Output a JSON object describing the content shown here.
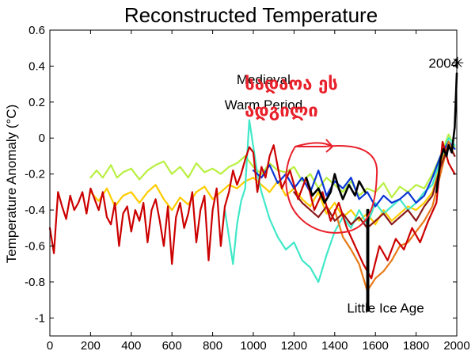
{
  "chart_data": {
    "type": "line",
    "title": "Reconstructed Temperature",
    "xlabel": "",
    "ylabel": "Temperature Anomaly (°C)",
    "xlim": [
      0,
      2000
    ],
    "ylim": [
      -1.1,
      0.6
    ],
    "xticks": [
      0,
      200,
      400,
      600,
      800,
      1000,
      1200,
      1400,
      1600,
      1800,
      2000
    ],
    "yticks": [
      0.6,
      0.4,
      0.2,
      0,
      -0.2,
      -0.4,
      -0.6,
      -0.8,
      -1
    ],
    "ytick_labels": [
      "0.6",
      "0.4",
      "0.2",
      "0",
      "-0.2",
      "-0.4",
      "-0.6",
      "-0.8",
      "-1"
    ],
    "grid": false,
    "annotations": [
      {
        "text": "Medieval",
        "x": 1050,
        "y": 0.3
      },
      {
        "text": "Warm Period",
        "x": 1050,
        "y": 0.16
      },
      {
        "text": "Little Ice Age",
        "x": 1650,
        "y": -0.97
      },
      {
        "text": "2004",
        "x": 1935,
        "y": 0.39
      },
      {
        "text": "სადაოა ეს",
        "x": 1580,
        "y": 0.27
      },
      {
        "text": "ადგილი",
        "x": 1580,
        "y": 0.12
      }
    ],
    "series": [
      {
        "color": "#b8f040",
        "x": [
          200,
          230,
          260,
          300,
          330,
          360,
          400,
          440,
          480,
          520,
          560,
          600,
          640,
          680,
          720,
          760,
          800,
          840,
          880,
          920,
          960,
          1000,
          1040,
          1080,
          1120,
          1160,
          1200,
          1240,
          1280,
          1320,
          1360,
          1400,
          1440,
          1480,
          1520,
          1560,
          1600,
          1640,
          1680,
          1720,
          1760,
          1800,
          1840,
          1880,
          1920,
          1960,
          1990
        ],
        "y": [
          -0.22,
          -0.18,
          -0.22,
          -0.15,
          -0.22,
          -0.19,
          -0.17,
          -0.23,
          -0.18,
          -0.15,
          -0.13,
          -0.2,
          -0.16,
          -0.22,
          -0.14,
          -0.19,
          -0.17,
          -0.2,
          -0.16,
          -0.14,
          -0.1,
          -0.16,
          -0.2,
          -0.14,
          -0.18,
          -0.19,
          -0.16,
          -0.24,
          -0.2,
          -0.28,
          -0.22,
          -0.26,
          -0.3,
          -0.24,
          -0.32,
          -0.28,
          -0.3,
          -0.25,
          -0.33,
          -0.27,
          -0.3,
          -0.26,
          -0.28,
          -0.2,
          -0.1,
          0.02,
          -0.05
        ]
      },
      {
        "color": "#ffcc00",
        "x": [
          200,
          240,
          280,
          320,
          360,
          400,
          440,
          480,
          520,
          560,
          600,
          640,
          680,
          720,
          760,
          800,
          840,
          880,
          920,
          960,
          1000,
          1040,
          1080,
          1120,
          1160,
          1200,
          1240,
          1280,
          1320,
          1360,
          1400,
          1440,
          1480,
          1520,
          1560,
          1600,
          1640,
          1680,
          1720,
          1760,
          1800,
          1840,
          1880,
          1920,
          1960,
          1990
        ],
        "y": [
          -0.3,
          -0.35,
          -0.28,
          -0.38,
          -0.32,
          -0.3,
          -0.36,
          -0.3,
          -0.26,
          -0.34,
          -0.4,
          -0.33,
          -0.37,
          -0.3,
          -0.27,
          -0.34,
          -0.3,
          -0.26,
          -0.28,
          -0.24,
          -0.22,
          -0.26,
          -0.3,
          -0.24,
          -0.32,
          -0.28,
          -0.34,
          -0.38,
          -0.3,
          -0.42,
          -0.36,
          -0.44,
          -0.4,
          -0.46,
          -0.42,
          -0.48,
          -0.4,
          -0.46,
          -0.42,
          -0.38,
          -0.4,
          -0.36,
          -0.3,
          -0.15,
          -0.02,
          -0.06
        ]
      },
      {
        "color": "#40e8c8",
        "x": [
          860,
          880,
          900,
          920,
          940,
          960,
          980,
          1000,
          1020,
          1040,
          1080,
          1120,
          1160,
          1200,
          1240,
          1280,
          1320,
          1360,
          1400,
          1440,
          1480,
          1520,
          1560,
          1600,
          1640,
          1680,
          1720,
          1760,
          1800,
          1840,
          1880,
          1920,
          1960,
          1990
        ],
        "y": [
          -0.4,
          -0.55,
          -0.7,
          -0.48,
          -0.35,
          -0.28,
          0.1,
          -0.05,
          -0.2,
          -0.3,
          -0.45,
          -0.55,
          -0.62,
          -0.58,
          -0.68,
          -0.72,
          -0.8,
          -0.65,
          -0.52,
          -0.44,
          -0.5,
          -0.4,
          -0.48,
          -0.36,
          -0.42,
          -0.38,
          -0.34,
          -0.4,
          -0.36,
          -0.3,
          -0.26,
          -0.12,
          0.0,
          -0.04
        ]
      },
      {
        "color": "#0a36d8",
        "x": [
          1000,
          1040,
          1080,
          1120,
          1160,
          1200,
          1240,
          1280,
          1320,
          1360,
          1400,
          1440,
          1480,
          1520,
          1560,
          1600,
          1640,
          1680,
          1720,
          1760,
          1800,
          1840,
          1880,
          1920,
          1960,
          1990
        ],
        "y": [
          -0.18,
          -0.22,
          -0.15,
          -0.25,
          -0.2,
          -0.28,
          -0.22,
          -0.3,
          -0.18,
          -0.32,
          -0.24,
          -0.28,
          -0.22,
          -0.34,
          -0.3,
          -0.38,
          -0.32,
          -0.36,
          -0.34,
          -0.3,
          -0.36,
          -0.32,
          -0.22,
          -0.1,
          -0.02,
          -0.06
        ]
      },
      {
        "color": "#e87a18",
        "x": [
          1400,
          1440,
          1480,
          1520,
          1560,
          1600,
          1640,
          1680,
          1720,
          1760,
          1800,
          1840,
          1880,
          1920,
          1960,
          1990
        ],
        "y": [
          -0.4,
          -0.55,
          -0.62,
          -0.7,
          -0.85,
          -0.78,
          -0.74,
          -0.68,
          -0.6,
          -0.58,
          -0.52,
          -0.46,
          -0.38,
          -0.2,
          -0.02,
          -0.1
        ]
      },
      {
        "color": "#8b1a1a",
        "x": [
          1200,
          1240,
          1280,
          1320,
          1360,
          1400,
          1440,
          1480,
          1520,
          1560,
          1600,
          1640,
          1680,
          1720,
          1760,
          1800,
          1840,
          1880,
          1920,
          1960,
          1990
        ],
        "y": [
          -0.3,
          -0.36,
          -0.4,
          -0.44,
          -0.38,
          -0.46,
          -0.42,
          -0.48,
          -0.44,
          -0.5,
          -0.46,
          -0.42,
          -0.48,
          -0.44,
          -0.4,
          -0.46,
          -0.38,
          -0.32,
          -0.16,
          -0.04,
          -0.1
        ]
      },
      {
        "color": "#cc0000",
        "x": [
          0,
          20,
          40,
          60,
          80,
          100,
          120,
          140,
          160,
          180,
          200,
          220,
          240,
          260,
          280,
          300,
          320,
          340,
          360,
          380,
          400,
          420,
          440,
          460,
          480,
          500,
          520,
          540,
          560,
          580,
          600,
          620,
          640,
          660,
          680,
          700,
          720,
          740,
          760,
          780,
          800,
          820,
          840,
          860,
          880,
          900,
          920,
          940,
          960,
          980,
          1000,
          1020,
          1040,
          1060,
          1080,
          1100,
          1140,
          1180,
          1220,
          1260,
          1300,
          1340,
          1380,
          1420,
          1460,
          1500,
          1540,
          1580,
          1620,
          1660,
          1700,
          1740,
          1780,
          1820,
          1860,
          1900,
          1930,
          1960,
          1990
        ],
        "y": [
          -0.5,
          -0.64,
          -0.3,
          -0.38,
          -0.45,
          -0.32,
          -0.4,
          -0.36,
          -0.3,
          -0.42,
          -0.28,
          -0.34,
          -0.4,
          -0.3,
          -0.44,
          -0.48,
          -0.36,
          -0.6,
          -0.42,
          -0.38,
          -0.52,
          -0.4,
          -0.46,
          -0.36,
          -0.58,
          -0.4,
          -0.34,
          -0.46,
          -0.6,
          -0.38,
          -0.7,
          -0.44,
          -0.36,
          -0.5,
          -0.42,
          -0.3,
          -0.58,
          -0.4,
          -0.32,
          -0.68,
          -0.4,
          -0.28,
          -0.6,
          -0.38,
          -0.3,
          -0.18,
          -0.26,
          -0.2,
          -0.12,
          -0.05,
          -0.08,
          -0.3,
          -0.16,
          -0.22,
          -0.1,
          -0.04,
          -0.28,
          -0.18,
          -0.34,
          -0.22,
          -0.4,
          -0.3,
          -0.46,
          -0.36,
          -0.5,
          -0.6,
          -0.7,
          -0.78,
          -0.6,
          -0.68,
          -0.56,
          -0.62,
          -0.5,
          -0.58,
          -0.46,
          -0.36,
          -0.02,
          -0.14,
          -0.2
        ]
      },
      {
        "color": "#000000",
        "x": [
          1260,
          1290,
          1320,
          1350,
          1380,
          1400,
          1420,
          1440,
          1470,
          1500,
          1520,
          1550
        ],
        "y": [
          -0.22,
          -0.32,
          -0.28,
          -0.36,
          -0.3,
          -0.2,
          -0.28,
          -0.34,
          -0.26,
          -0.32,
          -0.24,
          -0.3
        ]
      },
      {
        "color": "#000000",
        "x": [
          1560,
          1560,
          1565,
          1565
        ],
        "y": [
          -0.4,
          -0.96,
          -0.96,
          -0.4
        ]
      },
      {
        "color": "#000000",
        "x": [
          1900,
          1920,
          1935,
          1950,
          1960,
          1975,
          1990,
          2000
        ],
        "y": [
          -0.3,
          -0.12,
          -0.06,
          -0.1,
          -0.04,
          -0.08,
          0.06,
          0.36
        ]
      }
    ]
  }
}
